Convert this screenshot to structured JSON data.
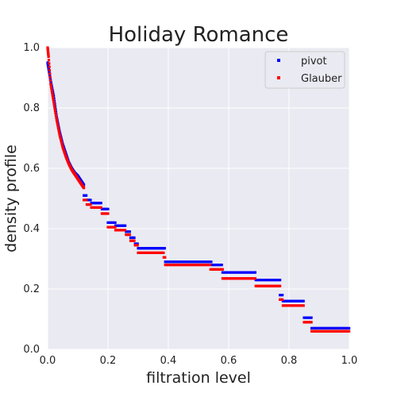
{
  "chart_data": {
    "type": "scatter",
    "title": "Holiday Romance",
    "xlabel": "filtration level",
    "ylabel": "density profile",
    "xlim": [
      0,
      1
    ],
    "ylim": [
      0,
      1
    ],
    "xticks": [
      "0.0",
      "0.2",
      "0.4",
      "0.6",
      "0.8",
      "1.0"
    ],
    "yticks": [
      "0.0",
      "0.2",
      "0.4",
      "0.6",
      "0.8",
      "1.0"
    ],
    "grid": true,
    "legend_position": "top-right",
    "series": [
      {
        "name": "pivot",
        "color": "#0000ff",
        "curve": [
          [
            0.0,
            0.95
          ],
          [
            0.005,
            0.92
          ],
          [
            0.01,
            0.89
          ],
          [
            0.02,
            0.84
          ],
          [
            0.03,
            0.77
          ],
          [
            0.04,
            0.72
          ],
          [
            0.05,
            0.68
          ],
          [
            0.06,
            0.65
          ],
          [
            0.07,
            0.62
          ],
          [
            0.08,
            0.6
          ],
          [
            0.09,
            0.585
          ],
          [
            0.1,
            0.575
          ],
          [
            0.11,
            0.56
          ],
          [
            0.12,
            0.545
          ]
        ],
        "steps": [
          [
            0.12,
            0.13,
            0.51
          ],
          [
            0.13,
            0.145,
            0.495
          ],
          [
            0.145,
            0.18,
            0.485
          ],
          [
            0.18,
            0.2,
            0.465
          ],
          [
            0.2,
            0.225,
            0.42
          ],
          [
            0.225,
            0.26,
            0.41
          ],
          [
            0.26,
            0.275,
            0.39
          ],
          [
            0.275,
            0.29,
            0.37
          ],
          [
            0.29,
            0.3,
            0.35
          ],
          [
            0.3,
            0.39,
            0.335
          ],
          [
            0.39,
            0.545,
            0.29
          ],
          [
            0.545,
            0.58,
            0.28
          ],
          [
            0.58,
            0.69,
            0.255
          ],
          [
            0.69,
            0.77,
            0.23
          ],
          [
            0.77,
            0.78,
            0.18
          ],
          [
            0.78,
            0.85,
            0.16
          ],
          [
            0.85,
            0.875,
            0.105
          ],
          [
            0.875,
            1.0,
            0.07
          ]
        ]
      },
      {
        "name": "Glauber",
        "color": "#ff0000",
        "curve": [
          [
            0.0,
            1.0
          ],
          [
            0.003,
            0.97
          ],
          [
            0.01,
            0.88
          ],
          [
            0.02,
            0.82
          ],
          [
            0.03,
            0.76
          ],
          [
            0.04,
            0.71
          ],
          [
            0.05,
            0.67
          ],
          [
            0.06,
            0.64
          ],
          [
            0.07,
            0.615
          ],
          [
            0.08,
            0.595
          ],
          [
            0.09,
            0.58
          ],
          [
            0.1,
            0.565
          ],
          [
            0.11,
            0.55
          ],
          [
            0.12,
            0.535
          ]
        ],
        "steps": [
          [
            0.12,
            0.13,
            0.495
          ],
          [
            0.13,
            0.145,
            0.48
          ],
          [
            0.145,
            0.18,
            0.47
          ],
          [
            0.18,
            0.2,
            0.45
          ],
          [
            0.2,
            0.225,
            0.405
          ],
          [
            0.225,
            0.26,
            0.395
          ],
          [
            0.26,
            0.275,
            0.38
          ],
          [
            0.275,
            0.29,
            0.36
          ],
          [
            0.29,
            0.3,
            0.345
          ],
          [
            0.3,
            0.385,
            0.32
          ],
          [
            0.385,
            0.39,
            0.305
          ],
          [
            0.39,
            0.54,
            0.28
          ],
          [
            0.54,
            0.58,
            0.265
          ],
          [
            0.58,
            0.69,
            0.235
          ],
          [
            0.69,
            0.77,
            0.21
          ],
          [
            0.77,
            0.78,
            0.165
          ],
          [
            0.78,
            0.85,
            0.145
          ],
          [
            0.85,
            0.875,
            0.09
          ],
          [
            0.875,
            1.0,
            0.06
          ]
        ]
      }
    ]
  },
  "colors": {
    "plot_background": "#eaeaf2",
    "grid": "#ffffff"
  }
}
